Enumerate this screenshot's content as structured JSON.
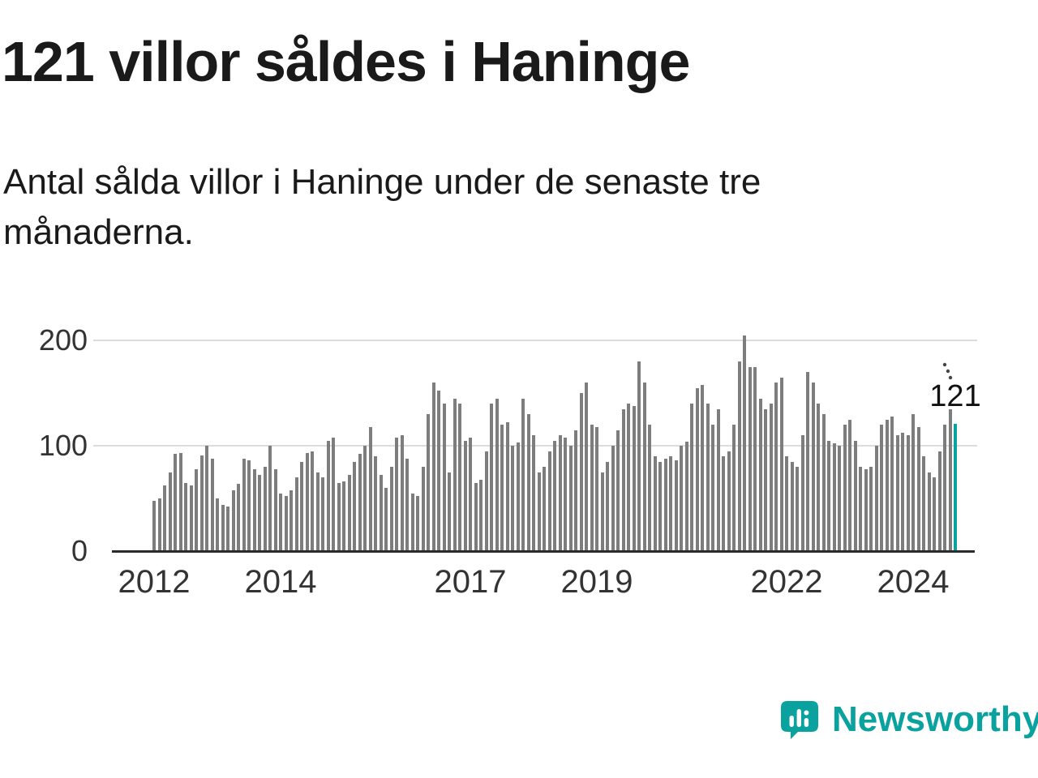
{
  "header": {
    "title": "121 villor såldes i Haninge",
    "subtitle": "Antal sålda villor i Haninge under de senaste tre månaderna."
  },
  "chart_data": {
    "type": "bar",
    "title": "121 villor såldes i Haninge",
    "xlabel": "",
    "ylabel": "",
    "ylim": [
      0,
      200
    ],
    "yticks": [
      0,
      100,
      200
    ],
    "grid": "horizontal",
    "x_start": {
      "year": 2012,
      "month": 1
    },
    "x_end": {
      "year": 2024,
      "month": 9
    },
    "frequency": "monthly",
    "xticks_years": [
      2012,
      2014,
      2017,
      2019,
      2022,
      2024
    ],
    "values": [
      48,
      50,
      62,
      75,
      92,
      93,
      65,
      62,
      78,
      91,
      100,
      88,
      50,
      44,
      42,
      58,
      64,
      88,
      86,
      78,
      72,
      80,
      100,
      78,
      55,
      52,
      58,
      70,
      85,
      93,
      95,
      75,
      70,
      105,
      108,
      65,
      66,
      72,
      85,
      92,
      100,
      118,
      90,
      72,
      60,
      80,
      108,
      110,
      88,
      55,
      52,
      80,
      130,
      160,
      152,
      140,
      75,
      145,
      140,
      105,
      108,
      65,
      68,
      95,
      140,
      145,
      120,
      122,
      100,
      103,
      145,
      130,
      110,
      75,
      80,
      95,
      105,
      110,
      108,
      100,
      115,
      150,
      160,
      120,
      118,
      75,
      85,
      100,
      115,
      135,
      140,
      138,
      180,
      160,
      120,
      90,
      85,
      88,
      90,
      86,
      100,
      104,
      140,
      155,
      158,
      140,
      120,
      135,
      90,
      95,
      120,
      180,
      205,
      175,
      175,
      145,
      135,
      140,
      160,
      165,
      90,
      85,
      80,
      110,
      170,
      160,
      140,
      130,
      105,
      102,
      100,
      120,
      125,
      105,
      80,
      78,
      80,
      100,
      120,
      125,
      128,
      110,
      112,
      110,
      130,
      118,
      90,
      75,
      70,
      95,
      120,
      135,
      121
    ],
    "highlight_last_value": 121,
    "annotation": "121",
    "bar_color": "#7d7d7d",
    "highlight_color": "#0aa29e",
    "axis_color": "#2b2b2b",
    "grid_color": "#dcdcdc"
  },
  "footer": {
    "brand": "Newsworthy",
    "brand_color": "#0aa29e",
    "logo_icon": "newsworthy-chart-bubble-icon"
  }
}
